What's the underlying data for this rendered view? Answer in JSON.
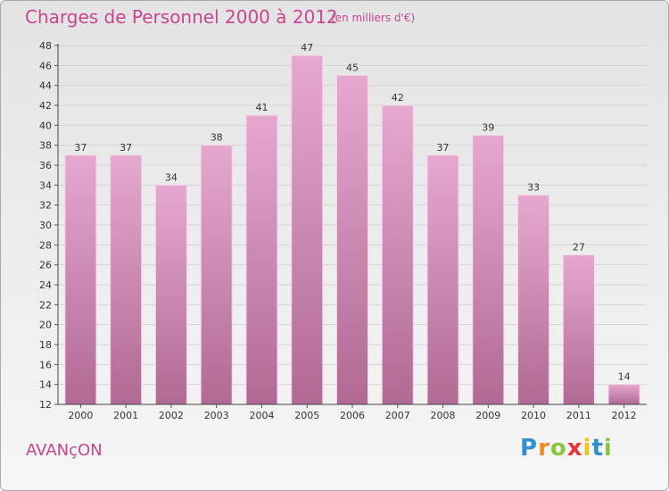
{
  "header": {
    "title": "Charges de Personnel 2000 à 2012",
    "subtitle": "(en milliers d'€)"
  },
  "footer": {
    "commune": "AVANçON",
    "logo_letters": [
      "P",
      "r",
      "o",
      "x",
      "i",
      "t",
      "i"
    ],
    "logo_colors": [
      "#2e8fd6",
      "#f28a1c",
      "#8bc53f",
      "#e8333c",
      "#f2c21b",
      "#2e8fd6",
      "#8bc53f"
    ]
  },
  "chart_data": {
    "type": "bar",
    "categories": [
      "2000",
      "2001",
      "2002",
      "2003",
      "2004",
      "2005",
      "2006",
      "2007",
      "2008",
      "2009",
      "2010",
      "2011",
      "2012"
    ],
    "values": [
      37,
      37,
      34,
      38,
      41,
      47,
      45,
      42,
      37,
      39,
      33,
      27,
      14
    ],
    "ylim": [
      12,
      48
    ],
    "yticks": [
      12,
      14,
      16,
      18,
      20,
      22,
      24,
      26,
      28,
      30,
      32,
      34,
      36,
      38,
      40,
      42,
      44,
      46,
      48
    ],
    "grid": true,
    "bar_color_top": "#e6a8cf",
    "bar_color_bottom": "#b06a93"
  }
}
